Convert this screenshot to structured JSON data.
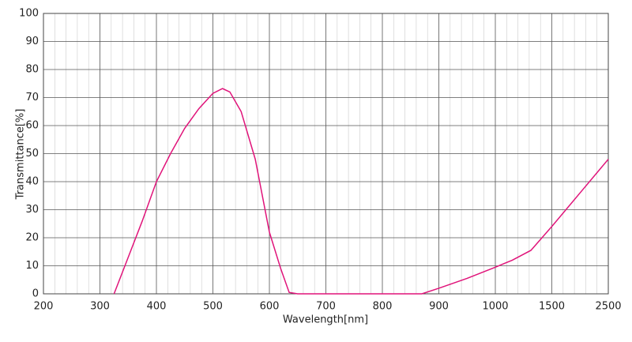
{
  "chart_data": {
    "type": "line",
    "xlabel": "Wavelength[nm]",
    "ylabel": "Transmittance[%]",
    "x": [
      325,
      350,
      375,
      400,
      425,
      450,
      475,
      500,
      517,
      530,
      550,
      575,
      600,
      620,
      635,
      650,
      870,
      900,
      950,
      1000,
      1150,
      1315,
      1500,
      2000,
      2500
    ],
    "series": [
      {
        "color": "#e0147a",
        "values": [
          0,
          13,
          26,
          40,
          50,
          59,
          66,
          71.5,
          73.2,
          72,
          65,
          48,
          22,
          9,
          0.5,
          0,
          0,
          2,
          5.5,
          9.5,
          12,
          15.5,
          24,
          36,
          48
        ]
      }
    ],
    "xlim": [
      200,
      2500
    ],
    "xticks": [
      200,
      300,
      400,
      500,
      600,
      700,
      800,
      900,
      1000,
      1500,
      2500
    ],
    "ylim": [
      0,
      100
    ],
    "yticks": [
      0,
      10,
      20,
      30,
      40,
      50,
      60,
      70,
      80,
      90,
      100
    ],
    "grid": true
  }
}
